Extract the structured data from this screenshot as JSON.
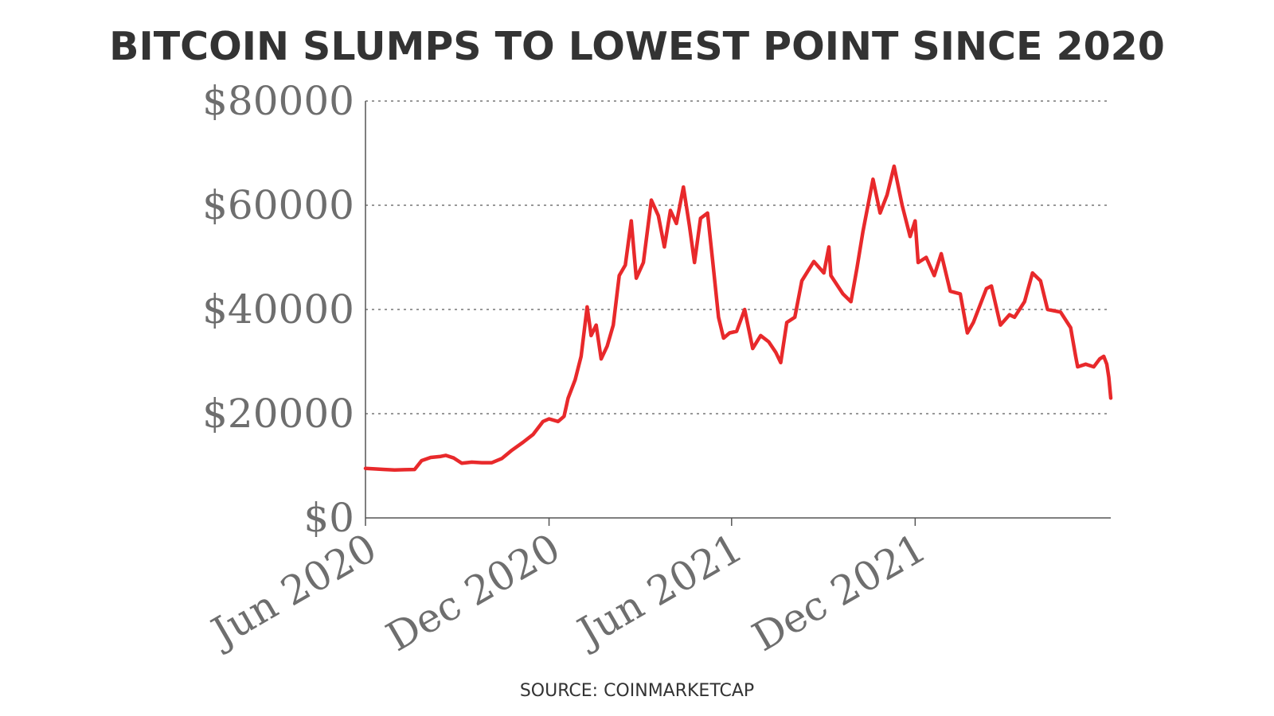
{
  "chart_data": {
    "type": "line",
    "title": "BITCOIN SLUMPS TO LOWEST POINT SINCE 2020",
    "source": "SOURCE: COINMARKETCAP",
    "xlabel": "",
    "ylabel": "",
    "ylim": [
      0,
      80000
    ],
    "y_ticks": [
      {
        "value": 0,
        "label": "$0"
      },
      {
        "value": 20000,
        "label": "$20000"
      },
      {
        "value": 40000,
        "label": "$40000"
      },
      {
        "value": 60000,
        "label": "$60000"
      },
      {
        "value": 80000,
        "label": "$80000"
      }
    ],
    "x_ticks": [
      {
        "date": "2020-06-01",
        "label": "Jun 2020"
      },
      {
        "date": "2020-12-01",
        "label": "Dec 2020"
      },
      {
        "date": "2021-06-01",
        "label": "Jun 2021"
      },
      {
        "date": "2021-12-01",
        "label": "Dec 2021"
      }
    ],
    "xlim": [
      "2020-06-01",
      "2022-06-14"
    ],
    "grid": {
      "horizontal": true,
      "style": "dotted"
    },
    "colors": {
      "line": "#e8292b",
      "grid": "#777777",
      "axis": "#555555",
      "text": "#333333",
      "tick_text": "#6e6e6e"
    },
    "series": [
      {
        "points": [
          [
            "2020-06-01",
            9500
          ],
          [
            "2020-06-10",
            9400
          ],
          [
            "2020-06-20",
            9300
          ],
          [
            "2020-06-30",
            9200
          ],
          [
            "2020-07-10",
            9250
          ],
          [
            "2020-07-20",
            9300
          ],
          [
            "2020-07-27",
            11000
          ],
          [
            "2020-08-05",
            11600
          ],
          [
            "2020-08-15",
            11800
          ],
          [
            "2020-08-20",
            12000
          ],
          [
            "2020-08-28",
            11500
          ],
          [
            "2020-09-05",
            10500
          ],
          [
            "2020-09-15",
            10700
          ],
          [
            "2020-09-25",
            10600
          ],
          [
            "2020-10-05",
            10600
          ],
          [
            "2020-10-15",
            11400
          ],
          [
            "2020-10-25",
            13000
          ],
          [
            "2020-11-05",
            14500
          ],
          [
            "2020-11-15",
            16000
          ],
          [
            "2020-11-25",
            18500
          ],
          [
            "2020-12-01",
            19000
          ],
          [
            "2020-12-10",
            18500
          ],
          [
            "2020-12-16",
            19500
          ],
          [
            "2020-12-20",
            23000
          ],
          [
            "2020-12-27",
            26500
          ],
          [
            "2021-01-02",
            31000
          ],
          [
            "2021-01-08",
            40500
          ],
          [
            "2021-01-12",
            35000
          ],
          [
            "2021-01-17",
            37000
          ],
          [
            "2021-01-22",
            30500
          ],
          [
            "2021-01-28",
            33000
          ],
          [
            "2021-02-03",
            37000
          ],
          [
            "2021-02-09",
            46500
          ],
          [
            "2021-02-15",
            48500
          ],
          [
            "2021-02-21",
            57000
          ],
          [
            "2021-02-26",
            46000
          ],
          [
            "2021-03-05",
            49000
          ],
          [
            "2021-03-13",
            61000
          ],
          [
            "2021-03-20",
            58000
          ],
          [
            "2021-03-26",
            52000
          ],
          [
            "2021-04-01",
            59000
          ],
          [
            "2021-04-07",
            56500
          ],
          [
            "2021-04-14",
            63500
          ],
          [
            "2021-04-20",
            56000
          ],
          [
            "2021-04-25",
            49000
          ],
          [
            "2021-05-01",
            57500
          ],
          [
            "2021-05-08",
            58500
          ],
          [
            "2021-05-13",
            49500
          ],
          [
            "2021-05-19",
            38500
          ],
          [
            "2021-05-24",
            34500
          ],
          [
            "2021-05-30",
            35500
          ],
          [
            "2021-06-06",
            35800
          ],
          [
            "2021-06-14",
            40000
          ],
          [
            "2021-06-22",
            32500
          ],
          [
            "2021-06-30",
            35000
          ],
          [
            "2021-07-08",
            33800
          ],
          [
            "2021-07-15",
            31800
          ],
          [
            "2021-07-20",
            29800
          ],
          [
            "2021-07-26",
            37500
          ],
          [
            "2021-08-03",
            38500
          ],
          [
            "2021-08-10",
            45500
          ],
          [
            "2021-08-22",
            49200
          ],
          [
            "2021-09-01",
            47000
          ],
          [
            "2021-09-06",
            52000
          ],
          [
            "2021-09-08",
            46500
          ],
          [
            "2021-09-20",
            43000
          ],
          [
            "2021-09-28",
            41500
          ],
          [
            "2021-10-04",
            48000
          ],
          [
            "2021-10-10",
            55000
          ],
          [
            "2021-10-20",
            65000
          ],
          [
            "2021-10-27",
            58500
          ],
          [
            "2021-11-03",
            62000
          ],
          [
            "2021-11-10",
            67500
          ],
          [
            "2021-11-18",
            60000
          ],
          [
            "2021-11-26",
            54000
          ],
          [
            "2021-12-01",
            57000
          ],
          [
            "2021-12-04",
            49000
          ],
          [
            "2021-12-12",
            50000
          ],
          [
            "2021-12-20",
            46500
          ],
          [
            "2021-12-27",
            50700
          ],
          [
            "2022-01-05",
            43500
          ],
          [
            "2022-01-15",
            43000
          ],
          [
            "2022-01-22",
            35500
          ],
          [
            "2022-01-28",
            37500
          ],
          [
            "2022-02-10",
            44000
          ],
          [
            "2022-02-15",
            44500
          ],
          [
            "2022-02-24",
            37000
          ],
          [
            "2022-03-05",
            39000
          ],
          [
            "2022-03-10",
            38500
          ],
          [
            "2022-03-20",
            41500
          ],
          [
            "2022-03-28",
            47000
          ],
          [
            "2022-04-05",
            45500
          ],
          [
            "2022-04-12",
            40000
          ],
          [
            "2022-04-25",
            39500
          ],
          [
            "2022-05-05",
            36500
          ],
          [
            "2022-05-10",
            31000
          ],
          [
            "2022-05-12",
            29000
          ],
          [
            "2022-05-20",
            29500
          ],
          [
            "2022-05-28",
            29000
          ],
          [
            "2022-06-03",
            30500
          ],
          [
            "2022-06-07",
            31000
          ],
          [
            "2022-06-10",
            29500
          ],
          [
            "2022-06-12",
            27000
          ],
          [
            "2022-06-14",
            23000
          ]
        ]
      }
    ]
  }
}
